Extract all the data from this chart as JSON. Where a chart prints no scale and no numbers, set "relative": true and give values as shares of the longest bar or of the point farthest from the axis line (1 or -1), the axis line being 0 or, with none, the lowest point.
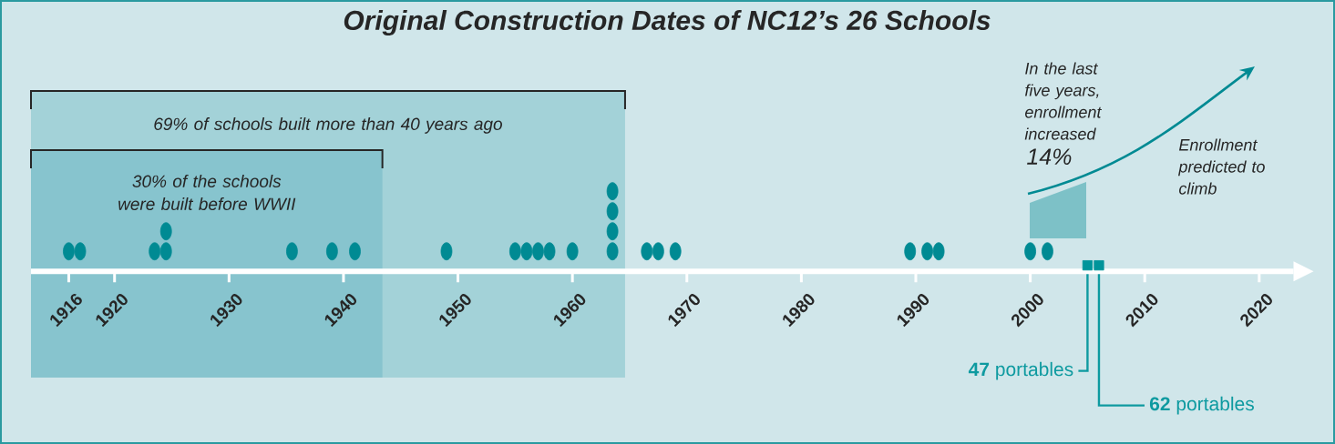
{
  "chart_data": {
    "type": "scatter",
    "title": "Original Construction Dates of NC12’s 26 Schools",
    "xlim": [
      1912.7,
      2023
    ],
    "xticks": [
      1916,
      1920,
      1930,
      1940,
      1950,
      1960,
      1970,
      1980,
      1990,
      2000,
      2010,
      2020
    ],
    "relative": true,
    "series": [
      {
        "color": "#008a93",
        "marker": "circle",
        "x": [
          1916,
          1917,
          1923.5,
          1924.5,
          1924.5,
          1935.5,
          1939,
          1941,
          1949,
          1955,
          1956,
          1957,
          1958,
          1960,
          1963.5,
          1963.5,
          1963.5,
          1963.5,
          1966.5,
          1967.5,
          1969,
          1989.5,
          1991,
          1992,
          2000,
          2001.5
        ],
        "values": [
          0.25,
          0.25,
          0.25,
          0.25,
          0.5,
          0.25,
          0.25,
          0.25,
          0.25,
          0.25,
          0.25,
          0.25,
          0.25,
          0.25,
          0.25,
          0.5,
          0.75,
          1,
          0.25,
          0.25,
          0.25,
          0.25,
          0.25,
          0.25,
          0.25,
          0.25
        ]
      },
      {
        "color": "#00949a",
        "marker": "square",
        "x": [
          2005,
          2006
        ],
        "values": [
          0.075,
          0.075
        ]
      }
    ],
    "bands": [
      {
        "axis": "x",
        "from": 1912.7,
        "to": 1964.6,
        "label": "69% of schools built more than 40 years ago",
        "color": "#a3d2d8"
      },
      {
        "axis": "x",
        "from": 1912.7,
        "to": 1943.4,
        "label": "30% of the schools were built before WWII",
        "color": "#87c4ce"
      }
    ],
    "annotations": [
      {
        "text": "**47** portables",
        "x": 2005,
        "y": 0.075
      },
      {
        "text": "**62** portables",
        "x": 2006,
        "y": 0.075
      },
      "In the last five years, enrollment increased",
      "14%",
      "Enrollment predicted to climb"
    ]
  }
}
